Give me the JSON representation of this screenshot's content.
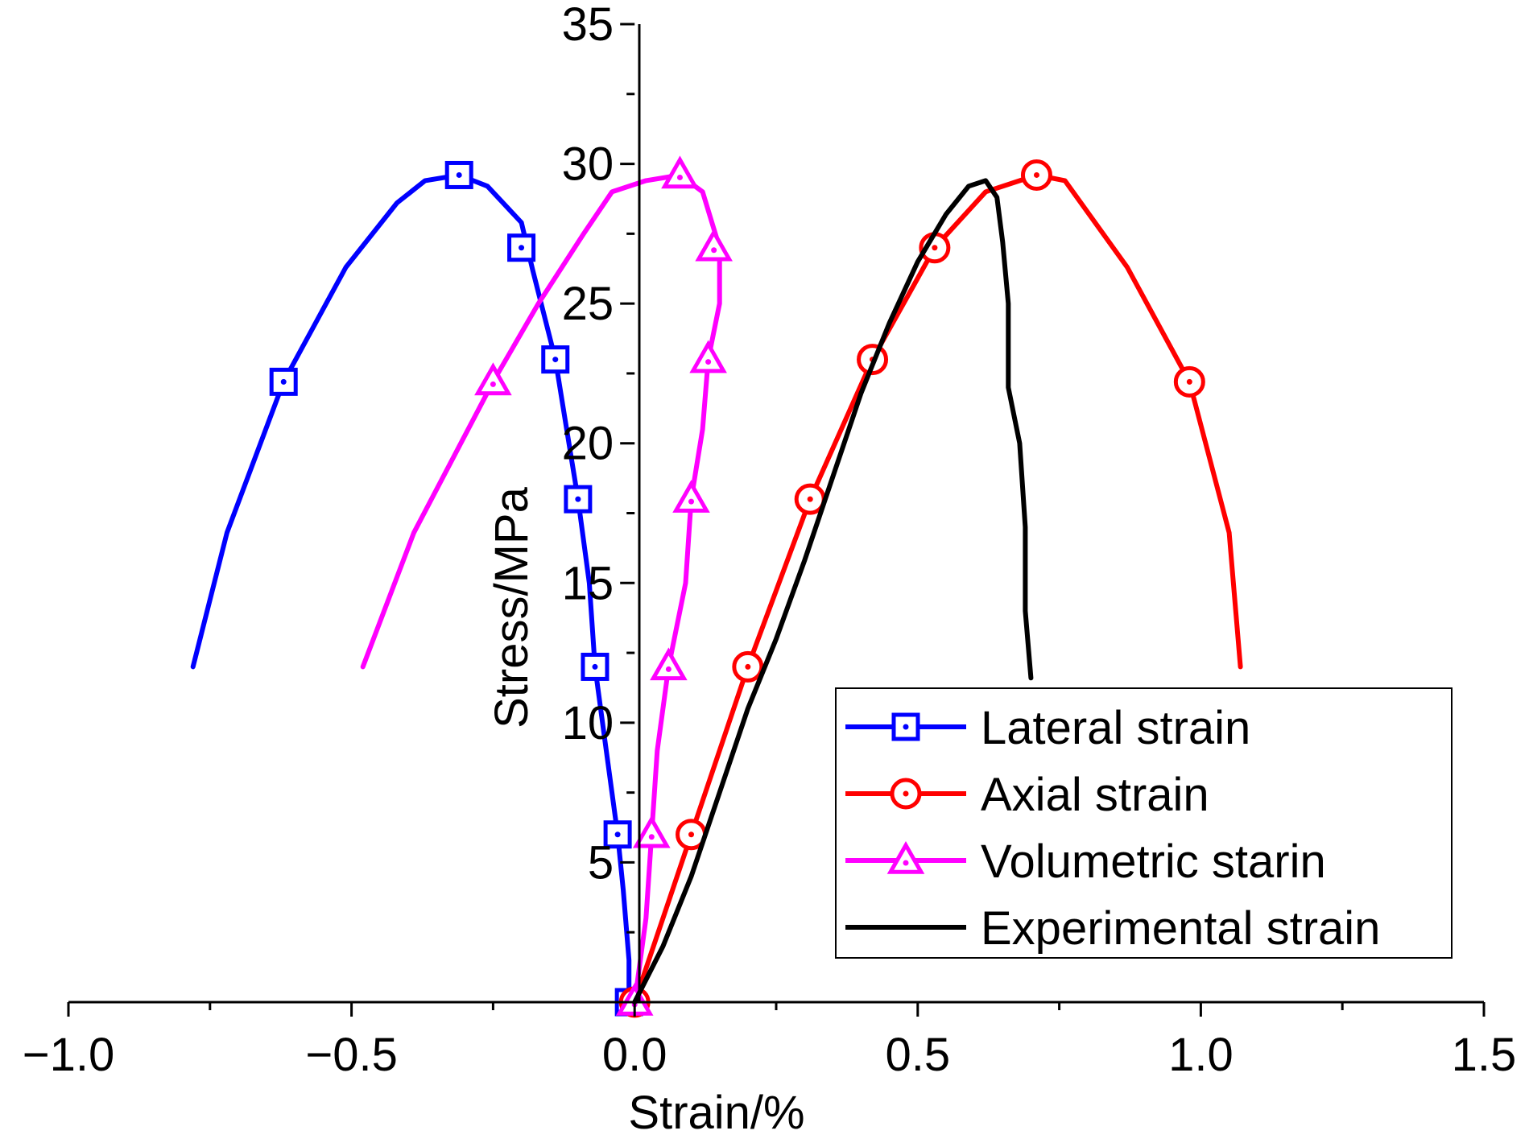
{
  "chart_data": {
    "type": "line",
    "title": "",
    "xlabel": "Strain/%",
    "ylabel": "Stress/MPa",
    "xlim": [
      -1.0,
      1.5
    ],
    "ylim": [
      0,
      35
    ],
    "x_ticks": [
      "−1.0",
      "−0.5",
      "0.0",
      "0.5",
      "1.0",
      "1.5"
    ],
    "x_tick_values": [
      -1.0,
      -0.5,
      0.0,
      0.5,
      1.0,
      1.5
    ],
    "y_ticks": [
      "5",
      "10",
      "15",
      "20",
      "25",
      "30",
      "35"
    ],
    "y_tick_values": [
      5,
      10,
      15,
      20,
      25,
      30,
      35
    ],
    "legend_position": "bottom-right",
    "series": [
      {
        "name": "Lateral strain",
        "color": "#0000ff",
        "marker": "square",
        "points": [
          [
            -0.78,
            12.0
          ],
          [
            -0.72,
            16.8
          ],
          [
            -0.62,
            22.2
          ],
          [
            -0.51,
            26.3
          ],
          [
            -0.42,
            28.6
          ],
          [
            -0.37,
            29.4
          ],
          [
            -0.31,
            29.6
          ],
          [
            -0.26,
            29.2
          ],
          [
            -0.2,
            27.9
          ],
          [
            -0.18,
            26.2
          ],
          [
            -0.14,
            23.0
          ],
          [
            -0.12,
            20.5
          ],
          [
            -0.1,
            18.0
          ],
          [
            -0.08,
            15.0
          ],
          [
            -0.07,
            12.0
          ],
          [
            -0.05,
            9.0
          ],
          [
            -0.03,
            6.0
          ],
          [
            -0.02,
            4.0
          ],
          [
            -0.01,
            1.5
          ],
          [
            -0.01,
            0.0
          ]
        ],
        "markers": [
          [
            -0.62,
            22.2
          ],
          [
            -0.31,
            29.6
          ],
          [
            -0.2,
            27.0
          ],
          [
            -0.14,
            23.0
          ],
          [
            -0.1,
            18.0
          ],
          [
            -0.07,
            12.0
          ],
          [
            -0.03,
            6.0
          ],
          [
            -0.01,
            0.0
          ]
        ]
      },
      {
        "name": "Axial strain",
        "color": "#ff0000",
        "marker": "circle",
        "points": [
          [
            0.0,
            0.0
          ],
          [
            0.1,
            6.0
          ],
          [
            0.2,
            12.0
          ],
          [
            0.31,
            18.0
          ],
          [
            0.42,
            23.0
          ],
          [
            0.53,
            27.0
          ],
          [
            0.62,
            29.0
          ],
          [
            0.71,
            29.6
          ],
          [
            0.76,
            29.4
          ],
          [
            0.87,
            26.3
          ],
          [
            0.98,
            22.2
          ],
          [
            1.05,
            16.8
          ],
          [
            1.07,
            12.0
          ]
        ],
        "markers": [
          [
            0.0,
            0.0
          ],
          [
            0.1,
            6.0
          ],
          [
            0.2,
            12.0
          ],
          [
            0.31,
            18.0
          ],
          [
            0.42,
            23.0
          ],
          [
            0.53,
            27.0
          ],
          [
            0.71,
            29.6
          ],
          [
            0.98,
            22.2
          ]
        ]
      },
      {
        "name": "Volumetric starin",
        "color": "#ff00ff",
        "marker": "triangle",
        "points": [
          [
            -0.48,
            12.0
          ],
          [
            -0.39,
            16.8
          ],
          [
            -0.25,
            22.2
          ],
          [
            -0.17,
            25.0
          ],
          [
            -0.09,
            27.5
          ],
          [
            -0.04,
            29.0
          ],
          [
            0.02,
            29.4
          ],
          [
            0.08,
            29.6
          ],
          [
            0.12,
            29.0
          ],
          [
            0.15,
            27.0
          ],
          [
            0.15,
            25.0
          ],
          [
            0.13,
            23.0
          ],
          [
            0.12,
            20.5
          ],
          [
            0.1,
            18.0
          ],
          [
            0.09,
            15.0
          ],
          [
            0.06,
            12.0
          ],
          [
            0.04,
            9.0
          ],
          [
            0.03,
            6.0
          ],
          [
            0.02,
            3.0
          ],
          [
            0.0,
            0.0
          ]
        ],
        "markers": [
          [
            -0.25,
            22.2
          ],
          [
            0.08,
            29.6
          ],
          [
            0.14,
            27.0
          ],
          [
            0.13,
            23.0
          ],
          [
            0.1,
            18.0
          ],
          [
            0.06,
            12.0
          ],
          [
            0.03,
            6.0
          ],
          [
            0.0,
            0.0
          ]
        ]
      },
      {
        "name": "Experimental strain",
        "color": "#000000",
        "marker": "none",
        "points": [
          [
            0.0,
            0.0
          ],
          [
            0.05,
            2.0
          ],
          [
            0.1,
            4.5
          ],
          [
            0.15,
            7.5
          ],
          [
            0.2,
            10.5
          ],
          [
            0.25,
            13.0
          ],
          [
            0.3,
            15.8
          ],
          [
            0.35,
            18.8
          ],
          [
            0.4,
            21.8
          ],
          [
            0.45,
            24.3
          ],
          [
            0.5,
            26.5
          ],
          [
            0.55,
            28.2
          ],
          [
            0.59,
            29.2
          ],
          [
            0.62,
            29.4
          ],
          [
            0.64,
            28.8
          ],
          [
            0.65,
            27.2
          ],
          [
            0.66,
            25.0
          ],
          [
            0.66,
            22.0
          ],
          [
            0.68,
            20.0
          ],
          [
            0.69,
            17.0
          ],
          [
            0.69,
            14.0
          ],
          [
            0.7,
            11.6
          ]
        ],
        "markers": []
      }
    ]
  }
}
